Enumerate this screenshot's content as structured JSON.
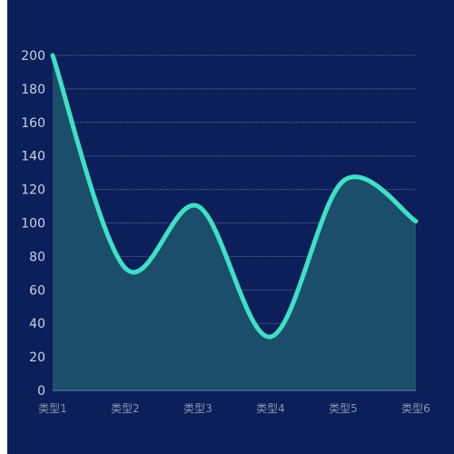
{
  "chart_data": {
    "type": "area",
    "categories": [
      "类型1",
      "类型2",
      "类型3",
      "类型4",
      "类型5",
      "类型6"
    ],
    "series": [
      {
        "values": [
          200,
          73,
          110,
          32,
          125,
          101
        ]
      }
    ],
    "ylim": [
      0,
      200
    ],
    "yticks": [
      0,
      20,
      40,
      60,
      80,
      100,
      120,
      140,
      160,
      180,
      200
    ],
    "ytick_labels": [
      "0",
      "20",
      "40",
      "60",
      "80",
      "100",
      "120",
      "140",
      "160",
      "180",
      "200"
    ],
    "grid": true,
    "smooth": true
  },
  "colors": {
    "background": "#0c1f5b",
    "line": "#3fe0c5",
    "area_fill": "#1b4e6b",
    "grid": "#5b6d9c",
    "y_tick_text": "#c9d1e6",
    "x_tick_text": "#8a93ad"
  }
}
